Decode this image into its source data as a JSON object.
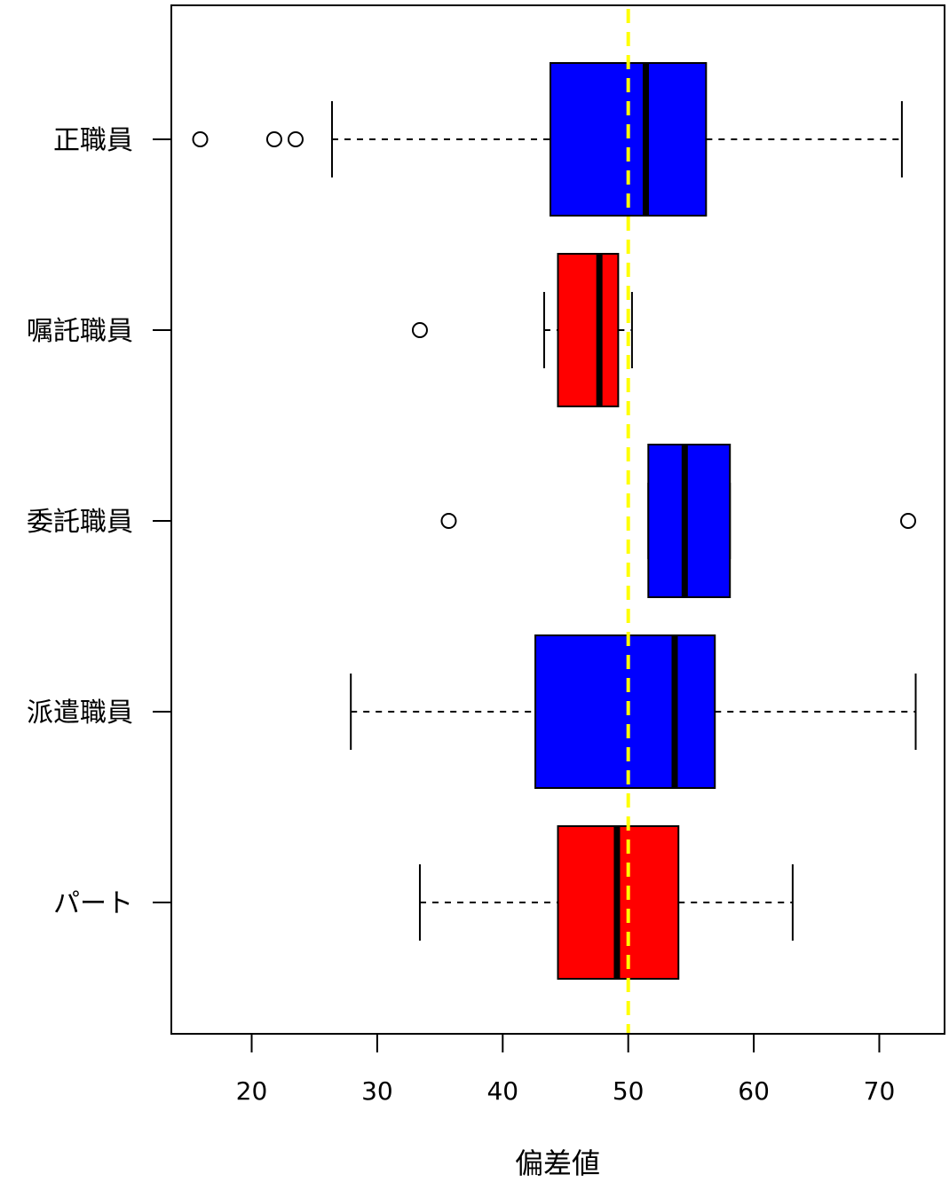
{
  "chart_data": {
    "type": "boxplot",
    "orientation": "horizontal",
    "title": "",
    "xlabel": "偏差値",
    "ylabel": "",
    "xlim": [
      13.6,
      75.2
    ],
    "x_ticks": [
      "20",
      "30",
      "40",
      "50",
      "60",
      "70"
    ],
    "x_tick_values": [
      20,
      30,
      40,
      50,
      60,
      70
    ],
    "reference_line": {
      "value": 50,
      "color": "#ffff00",
      "style": "dashed"
    },
    "grid": false,
    "groups": [
      {
        "label": "正職員",
        "color": "#0000ff",
        "whisker_low": 26.4,
        "q1": 43.8,
        "median": 51.4,
        "q3": 56.2,
        "whisker_high": 71.8,
        "outliers": [
          15.9,
          21.8,
          23.5
        ]
      },
      {
        "label": "嘱託職員",
        "color": "#ff0000",
        "whisker_low": 43.3,
        "q1": 44.4,
        "median": 47.7,
        "q3": 49.2,
        "whisker_high": 50.3,
        "outliers": [
          33.4
        ]
      },
      {
        "label": "委託職員",
        "color": "#0000ff",
        "whisker_low": 51.6,
        "q1": 51.6,
        "median": 54.5,
        "q3": 58.1,
        "whisker_high": 58.1,
        "outliers": [
          35.7,
          72.3
        ]
      },
      {
        "label": "派遣職員",
        "color": "#0000ff",
        "whisker_low": 27.9,
        "q1": 42.6,
        "median": 53.7,
        "q3": 56.9,
        "whisker_high": 72.9,
        "outliers": []
      },
      {
        "label": "パート",
        "color": "#ff0000",
        "whisker_low": 33.4,
        "q1": 44.4,
        "median": 49.1,
        "q3": 54.0,
        "whisker_high": 63.1,
        "outliers": []
      }
    ]
  }
}
